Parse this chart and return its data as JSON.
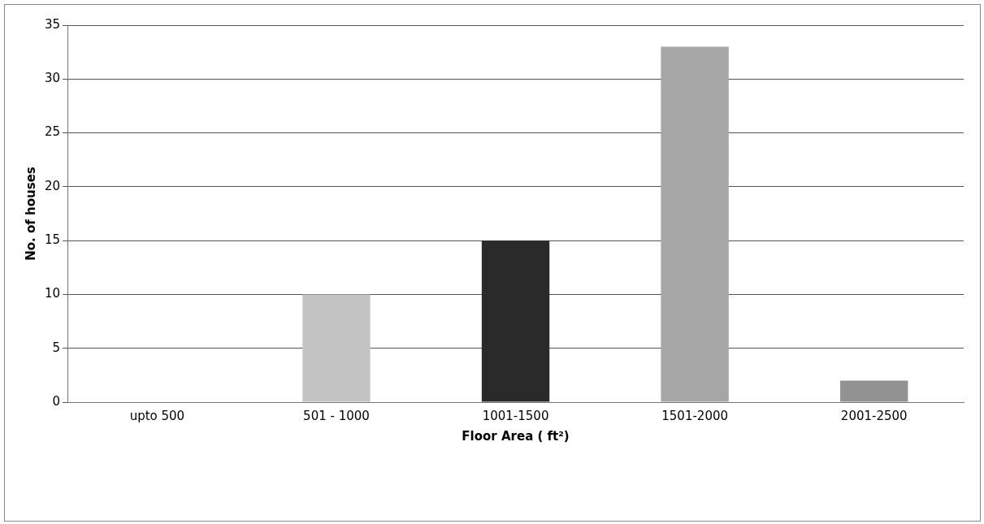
{
  "chart_data": {
    "type": "bar",
    "xlabel": "Floor Area ( ft²)",
    "ylabel": "No. of houses",
    "categories": [
      "upto 500",
      "501 - 1000",
      "1001-1500",
      "1501-2000",
      "2001-2500"
    ],
    "values": [
      0,
      10,
      15,
      33,
      2
    ],
    "colors": [
      "#b0b0b0",
      "#c4c4c4",
      "#2a2a2a",
      "#a6a6a6",
      "#929292"
    ],
    "ylim": [
      0,
      35
    ],
    "yticks": [
      0,
      5,
      10,
      15,
      20,
      25,
      30,
      35
    ],
    "grid": "y"
  }
}
